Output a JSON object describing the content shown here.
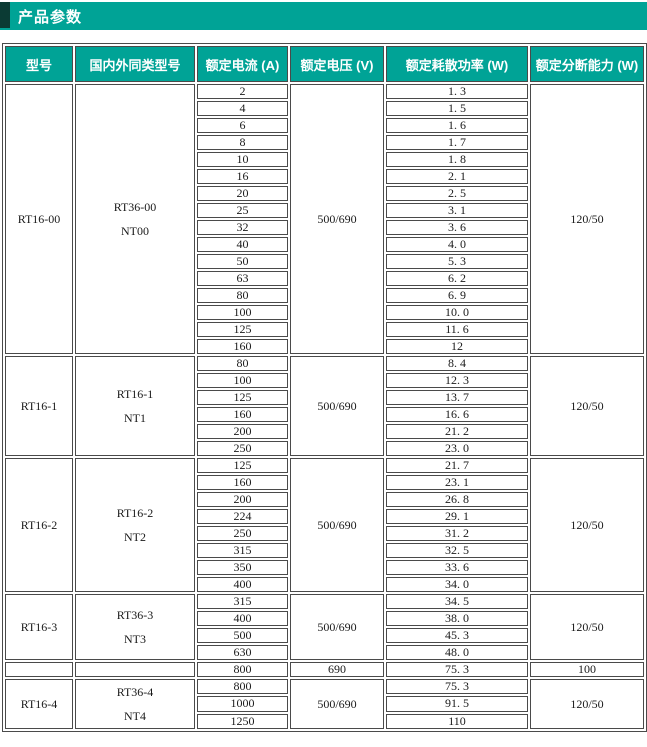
{
  "title": "产品参数",
  "colors": {
    "accent": "#00A396",
    "accent_dark": "#0B3B34",
    "border": "#4A4A4A",
    "text": "#1A1A1A",
    "header_text": "#FFFFFF"
  },
  "table": {
    "headers": [
      "型号",
      "国内外同类型号",
      "额定电流 (A)",
      "额定电压 (V)",
      "额定耗散功率 (W)",
      "额定分断能力 (W)"
    ],
    "groups": [
      {
        "model": "RT16-00",
        "equivalent_lines": [
          "RT36-00",
          "NT00"
        ],
        "voltage": "500/690",
        "breaking": "120/50",
        "merged_rows": 16,
        "rows": [
          {
            "current": "2",
            "power": "1. 3"
          },
          {
            "current": "4",
            "power": "1. 5"
          },
          {
            "current": "6",
            "power": "1. 6"
          },
          {
            "current": "8",
            "power": "1. 7"
          },
          {
            "current": "10",
            "power": "1. 8"
          },
          {
            "current": "16",
            "power": "2. 1"
          },
          {
            "current": "20",
            "power": "2. 5"
          },
          {
            "current": "25",
            "power": "3. 1"
          },
          {
            "current": "32",
            "power": "3. 6"
          },
          {
            "current": "40",
            "power": "4. 0"
          },
          {
            "current": "50",
            "power": "5. 3"
          },
          {
            "current": "63",
            "power": "6. 2"
          },
          {
            "current": "80",
            "power": "6. 9"
          },
          {
            "current": "100",
            "power": "10. 0"
          },
          {
            "current": "125",
            "power": "11. 6"
          },
          {
            "current": "160",
            "power": "12"
          }
        ]
      },
      {
        "model": "RT16-1",
        "equivalent_lines": [
          "RT16-1",
          "NT1"
        ],
        "voltage": "500/690",
        "breaking": "120/50",
        "merged_rows": 6,
        "rows": [
          {
            "current": "80",
            "power": "8. 4"
          },
          {
            "current": "100",
            "power": "12. 3"
          },
          {
            "current": "125",
            "power": "13. 7"
          },
          {
            "current": "160",
            "power": "16. 6"
          },
          {
            "current": "200",
            "power": "21. 2"
          },
          {
            "current": "250",
            "power": "23. 0"
          }
        ]
      },
      {
        "model": "RT16-2",
        "equivalent_lines": [
          "RT16-2",
          "NT2"
        ],
        "voltage": "500/690",
        "breaking": "120/50",
        "merged_rows": 8,
        "rows": [
          {
            "current": "125",
            "power": "21. 7"
          },
          {
            "current": "160",
            "power": "23. 1"
          },
          {
            "current": "200",
            "power": "26. 8"
          },
          {
            "current": "224",
            "power": "29. 1"
          },
          {
            "current": "250",
            "power": "31. 2"
          },
          {
            "current": "315",
            "power": "32. 5"
          },
          {
            "current": "350",
            "power": "33. 6"
          },
          {
            "current": "400",
            "power": "34. 0"
          }
        ]
      },
      {
        "model": "RT16-3",
        "equivalent_lines": [
          "RT36-3",
          "NT3"
        ],
        "voltage": "500/690",
        "breaking": "120/50",
        "merged_rows": 4,
        "rows": [
          {
            "current": "315",
            "power": "34. 5"
          },
          {
            "current": "400",
            "power": "38. 0"
          },
          {
            "current": "500",
            "power": "45. 3"
          },
          {
            "current": "630",
            "power": "48. 0"
          },
          {
            "current": "800",
            "power": "75. 3",
            "voltage": "690",
            "breaking": "100"
          }
        ]
      },
      {
        "model": "RT16-4",
        "equivalent_lines": [
          "RT36-4",
          "NT4"
        ],
        "voltage": "500/690",
        "breaking": "120/50",
        "merged_rows": 3,
        "rows": [
          {
            "current": "800",
            "power": "75. 3"
          },
          {
            "current": "1000",
            "power": "91. 5"
          },
          {
            "current": "1250",
            "power": "110"
          }
        ]
      }
    ]
  }
}
